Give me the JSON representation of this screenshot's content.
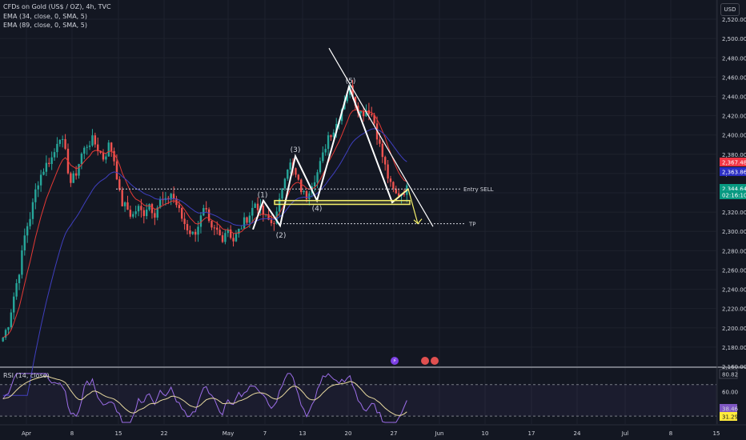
{
  "legend": {
    "title": "CFDs on Gold (US$ / OZ), 4h, TVC",
    "ema34": "EMA (34, close, 0, SMA, 5)",
    "ema89": "EMA (89, close, 0, SMA, 5)",
    "rsi": "RSI (14, close)"
  },
  "currency": "USD",
  "colors": {
    "background": "#131722",
    "up": "#26a69a",
    "down": "#ef5350",
    "ema34": "#e53935",
    "ema89": "#3f3fbf",
    "rsi_line": "#9c6ee8",
    "rsi_ma": "#e8d9a0",
    "wave": "#ffffff",
    "zone": "#f5f06b",
    "grid": "#1e222d"
  },
  "chart_data": [
    {
      "type": "candlestick",
      "symbol": "CFDs on Gold (US$ / OZ)",
      "interval": "4h",
      "ylim": [
        2160,
        2530
      ],
      "y_ticks": [
        2160,
        2180,
        2200,
        2220,
        2240,
        2260,
        2280,
        2300,
        2320,
        2340,
        2360,
        2380,
        2400,
        2420,
        2440,
        2460,
        2480,
        2500,
        2520
      ],
      "x_tick_labels": [
        "Apr",
        "8",
        "15",
        "22",
        "May",
        "7",
        "13",
        "20",
        "27",
        "Jun",
        "10",
        "17",
        "24",
        "Jul",
        "8",
        "15"
      ],
      "price_badges": [
        {
          "value": "2,367.48",
          "color": "#f23645"
        },
        {
          "value": "2,363.86",
          "color": "#2b2fc4"
        },
        {
          "value": "2,344.64",
          "color": "#089981"
        },
        {
          "value": "02:16:10",
          "color": "#089981"
        }
      ],
      "close_path": [
        2190,
        2205,
        2235,
        2262,
        2300,
        2318,
        2348,
        2362,
        2372,
        2378,
        2402,
        2385,
        2350,
        2360,
        2380,
        2390,
        2395,
        2385,
        2375,
        2392,
        2370,
        2330,
        2325,
        2315,
        2325,
        2318,
        2330,
        2318,
        2332,
        2330,
        2340,
        2327,
        2312,
        2302,
        2296,
        2310,
        2324,
        2300,
        2302,
        2292,
        2305,
        2290,
        2300,
        2310,
        2318,
        2330,
        2321,
        2313,
        2308,
        2320,
        2355,
        2372,
        2360,
        2345,
        2335,
        2350,
        2360,
        2378,
        2400,
        2405,
        2420,
        2440,
        2450,
        2430,
        2422,
        2428,
        2418,
        2392,
        2370,
        2348,
        2338,
        2340,
        2344
      ],
      "annotations": {
        "wave_labels": [
          "(1)",
          "(2)",
          "(3)",
          "(4)",
          "(5)"
        ],
        "wave_points": [
          [
            2301,
            2332
          ],
          [
            2308,
            2378
          ],
          [
            2340,
            2450
          ]
        ],
        "entry_label": "Entry SELL",
        "entry_level": 2344,
        "tp_label": "TP",
        "tp_level": 2308,
        "zone": [
          2328,
          2332
        ],
        "trendline": [
          2490,
          2305
        ],
        "projection": [
          2344,
          2330,
          2308
        ]
      }
    },
    {
      "type": "line",
      "title": "RSI (14, close)",
      "ylim": [
        20,
        90
      ],
      "y_ticks": [
        60
      ],
      "levels": [
        70,
        30
      ],
      "value_badges": [
        {
          "value": "80.82",
          "color": "#131722"
        },
        {
          "value": "60.00",
          "color": "#131722"
        },
        {
          "value": "38.46",
          "color": "#7e57c2"
        },
        {
          "value": "31.29",
          "color": "#ffeb3b"
        }
      ]
    }
  ]
}
